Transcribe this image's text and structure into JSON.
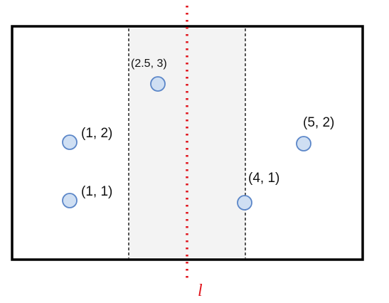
{
  "diagram": {
    "points": [
      {
        "label": "(1, 2)",
        "x": 1,
        "y": 2
      },
      {
        "label": "(1, 1)",
        "x": 1,
        "y": 1
      },
      {
        "label": "(2.5, 3)",
        "x": 2.5,
        "y": 3
      },
      {
        "label": "(4, 1)",
        "x": 4,
        "y": 1
      },
      {
        "label": "(5, 2)",
        "x": 5,
        "y": 2
      }
    ],
    "divider_label": "l",
    "colors": {
      "frame": "#000000",
      "strip_fill": "#f3f3f3",
      "strip_border": "#000000",
      "divider": "#e0141c",
      "point_fill": "#cfdff3",
      "point_stroke": "#5b86c8",
      "label": "#111111"
    }
  }
}
